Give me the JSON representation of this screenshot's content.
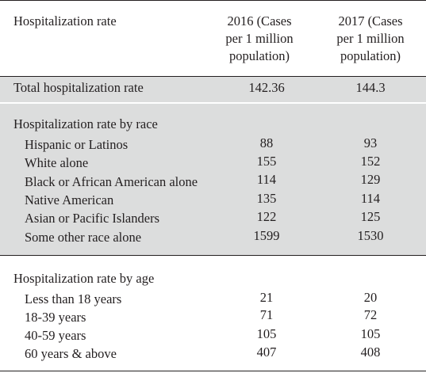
{
  "header": {
    "col1": "Hospitalization rate",
    "col2_lines": [
      "2016 (Cases",
      "per 1 million",
      "population)"
    ],
    "col3_lines": [
      "2017 (Cases",
      "per 1 million",
      "population)"
    ]
  },
  "total": {
    "label": "Total hospitalization rate",
    "v2016": "142.36",
    "v2017": "144.3"
  },
  "race": {
    "title": "Hospitalization rate by race",
    "rows": [
      {
        "label": "Hispanic or Latinos",
        "v2016": "88",
        "v2017": "93"
      },
      {
        "label": "White alone",
        "v2016": "155",
        "v2017": "152"
      },
      {
        "label": "Black or African American alone",
        "v2016": "114",
        "v2017": "129"
      },
      {
        "label": "Native American",
        "v2016": "135",
        "v2017": "114"
      },
      {
        "label": "Asian or Pacific Islanders",
        "v2016": "122",
        "v2017": "125"
      },
      {
        "label": "Some other race alone",
        "v2016": "1599",
        "v2017": "1530"
      }
    ]
  },
  "age": {
    "title": "Hospitalization rate by age",
    "rows": [
      {
        "label": "Less than 18 years",
        "v2016": "21",
        "v2017": "20"
      },
      {
        "label": "18-39 years",
        "v2016": "71",
        "v2017": "72"
      },
      {
        "label": "40-59 years",
        "v2016": "105",
        "v2017": "105"
      },
      {
        "label": "60 years & above",
        "v2016": "407",
        "v2017": "408"
      }
    ]
  },
  "colors": {
    "band": "#dcdddd",
    "text": "#231f20",
    "rule": "#231f20"
  }
}
